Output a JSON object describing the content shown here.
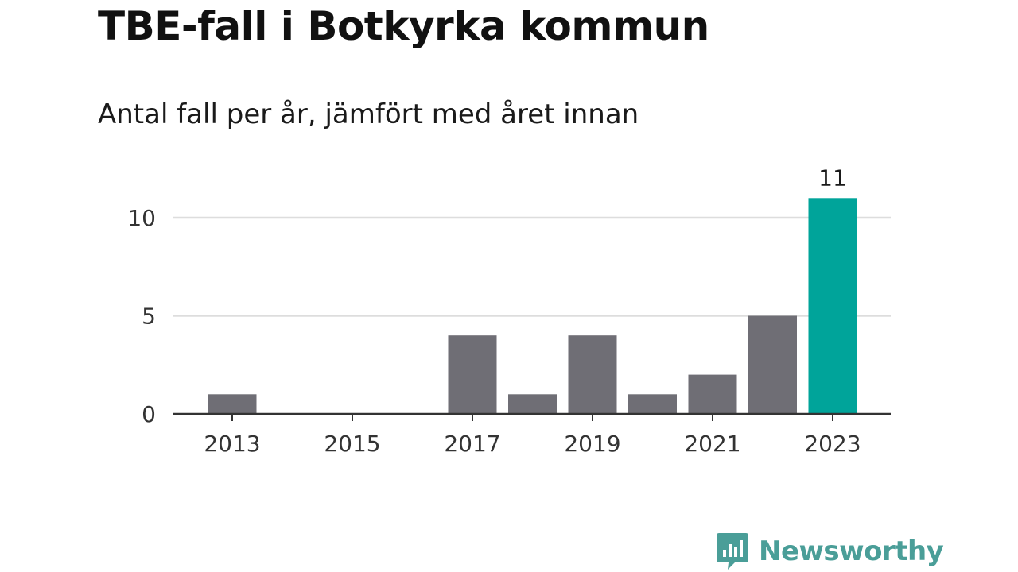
{
  "header": {
    "title": "TBE-fall i Botkyrka kommun",
    "subtitle": "Antal fall per år, jämfört med året innan"
  },
  "chart_data": {
    "type": "bar",
    "title": "TBE-fall i Botkyrka kommun",
    "subtitle": "Antal fall per år, jämfört med året innan",
    "categories": [
      "2013",
      "2014",
      "2015",
      "2016",
      "2017",
      "2018",
      "2019",
      "2020",
      "2021",
      "2022",
      "2023"
    ],
    "values": [
      1,
      0,
      0,
      0,
      4,
      1,
      4,
      1,
      2,
      5,
      11
    ],
    "x_tick_labels": [
      "2013",
      "2015",
      "2017",
      "2019",
      "2021",
      "2023"
    ],
    "y_ticks": [
      0,
      5,
      10
    ],
    "ylim": [
      0,
      11
    ],
    "grid": true,
    "highlight": {
      "category": "2023",
      "label": "11"
    },
    "xlabel": "",
    "ylabel": ""
  },
  "colors": {
    "bar": "#6f6e75",
    "highlight": "#00a49a",
    "grid": "#dddddd",
    "axis": "#333333",
    "brand": "#4a9e98"
  },
  "brand": {
    "name": "Newsworthy",
    "icon": "newsworthy-logo-icon"
  }
}
